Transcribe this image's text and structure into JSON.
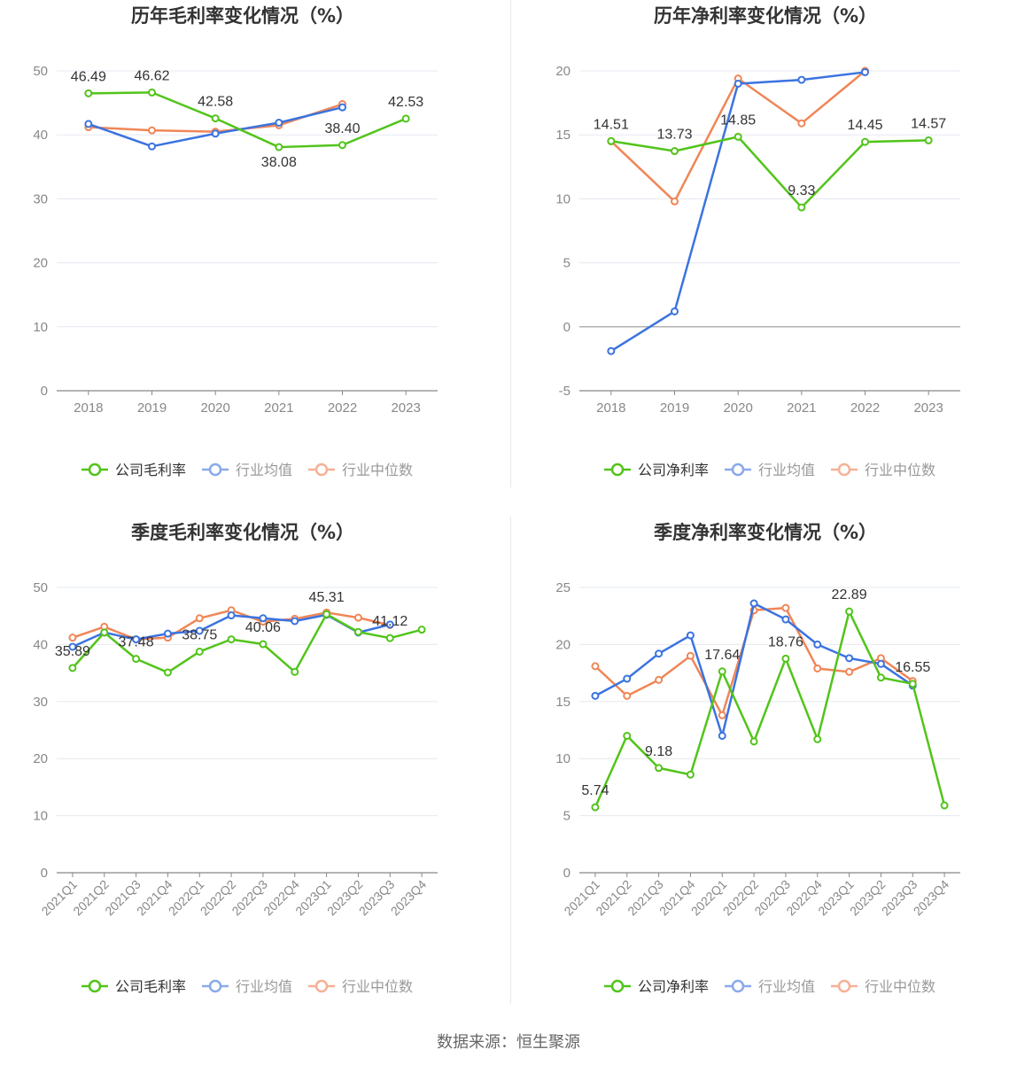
{
  "footer": {
    "source": "数据来源：恒生聚源"
  },
  "legend_colors": {
    "company": "#52c41a",
    "avg": "#3b73e0",
    "median": "#f08657"
  },
  "chart_data": [
    {
      "type": "line",
      "title": "历年毛利率变化情况（%）",
      "categories": [
        "2018",
        "2019",
        "2020",
        "2021",
        "2022",
        "2023"
      ],
      "ylim": [
        0,
        50
      ],
      "yticks": [
        0,
        10,
        20,
        30,
        40,
        50
      ],
      "grid": true,
      "legend_position": "bottom",
      "series": [
        {
          "name": "公司毛利率",
          "color": "#52c41a",
          "values": [
            46.49,
            46.62,
            42.58,
            38.08,
            38.4,
            42.53
          ],
          "labels": [
            "46.49",
            "46.62",
            "42.58",
            "38.08",
            "38.40",
            "42.53"
          ]
        },
        {
          "name": "行业均值",
          "color": "#3b73e0",
          "values": [
            41.7,
            38.2,
            40.2,
            41.9,
            44.3,
            null
          ]
        },
        {
          "name": "行业中位数",
          "color": "#f08657",
          "values": [
            41.2,
            40.7,
            40.5,
            41.5,
            44.8,
            null
          ]
        }
      ]
    },
    {
      "type": "line",
      "title": "历年净利率变化情况（%）",
      "categories": [
        "2018",
        "2019",
        "2020",
        "2021",
        "2022",
        "2023"
      ],
      "ylim": [
        -5,
        20
      ],
      "yticks": [
        -5,
        0,
        5,
        10,
        15,
        20
      ],
      "grid": true,
      "legend_position": "bottom",
      "series": [
        {
          "name": "公司净利率",
          "color": "#52c41a",
          "values": [
            14.51,
            13.73,
            14.85,
            9.33,
            14.45,
            14.57
          ],
          "labels": [
            "14.51",
            "13.73",
            "14.85",
            "9.33",
            "14.45",
            "14.57"
          ]
        },
        {
          "name": "行业均值",
          "color": "#3b73e0",
          "values": [
            -1.9,
            1.2,
            19.0,
            19.3,
            19.9,
            null
          ]
        },
        {
          "name": "行业中位数",
          "color": "#f08657",
          "values": [
            14.5,
            9.8,
            19.4,
            15.9,
            20.0,
            null
          ]
        }
      ]
    },
    {
      "type": "line",
      "title": "季度毛利率变化情况（%）",
      "categories": [
        "2021Q1",
        "2021Q2",
        "2021Q3",
        "2021Q4",
        "2022Q1",
        "2022Q2",
        "2022Q3",
        "2022Q4",
        "2023Q1",
        "2023Q2",
        "2023Q3",
        "2023Q4"
      ],
      "ylim": [
        0,
        50
      ],
      "yticks": [
        0,
        10,
        20,
        30,
        40,
        50
      ],
      "grid": true,
      "legend_position": "bottom",
      "series": [
        {
          "name": "公司毛利率",
          "color": "#52c41a",
          "values": [
            35.89,
            42.1,
            37.48,
            35.1,
            38.75,
            40.9,
            40.06,
            35.2,
            45.31,
            42.2,
            41.12,
            42.6
          ],
          "labels": [
            "35.89",
            "",
            "37.48",
            "",
            "38.75",
            "",
            "40.06",
            "",
            "45.31",
            "",
            "41.12",
            ""
          ]
        },
        {
          "name": "行业均值",
          "color": "#3b73e0",
          "values": [
            39.6,
            42.1,
            40.9,
            41.9,
            42.4,
            45.1,
            44.6,
            44.1,
            45.2,
            42.1,
            43.5,
            null
          ]
        },
        {
          "name": "行业中位数",
          "color": "#f08657",
          "values": [
            41.2,
            43.1,
            40.9,
            41.2,
            44.6,
            46.0,
            44.0,
            44.5,
            45.6,
            44.7,
            43.4,
            null
          ]
        }
      ]
    },
    {
      "type": "line",
      "title": "季度净利率变化情况（%）",
      "categories": [
        "2021Q1",
        "2021Q2",
        "2021Q3",
        "2021Q4",
        "2022Q1",
        "2022Q2",
        "2022Q3",
        "2022Q4",
        "2023Q1",
        "2023Q2",
        "2023Q3",
        "2023Q4"
      ],
      "ylim": [
        0,
        25
      ],
      "yticks": [
        0,
        5,
        10,
        15,
        20,
        25
      ],
      "grid": true,
      "legend_position": "bottom",
      "series": [
        {
          "name": "公司净利率",
          "color": "#52c41a",
          "values": [
            5.74,
            12.0,
            9.18,
            8.6,
            17.64,
            11.5,
            18.76,
            11.7,
            22.89,
            17.1,
            16.55,
            5.9
          ],
          "labels": [
            "5.74",
            "",
            "9.18",
            "",
            "17.64",
            "",
            "18.76",
            "",
            "22.89",
            "",
            "16.55",
            ""
          ]
        },
        {
          "name": "行业均值",
          "color": "#3b73e0",
          "values": [
            15.5,
            17.0,
            19.2,
            20.8,
            12.0,
            23.6,
            22.2,
            20.0,
            18.8,
            18.3,
            16.4,
            null
          ]
        },
        {
          "name": "行业中位数",
          "color": "#f08657",
          "values": [
            18.1,
            15.5,
            16.9,
            19.0,
            13.8,
            23.0,
            23.2,
            17.9,
            17.6,
            18.8,
            16.8,
            null
          ]
        }
      ]
    }
  ]
}
